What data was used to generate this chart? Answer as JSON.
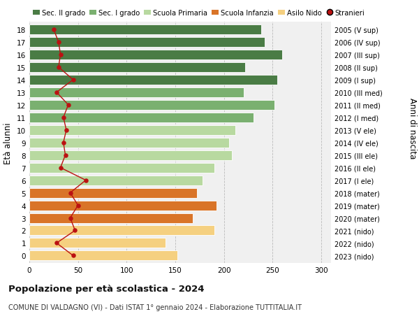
{
  "ages": [
    18,
    17,
    16,
    15,
    14,
    13,
    12,
    11,
    10,
    9,
    8,
    7,
    6,
    5,
    4,
    3,
    2,
    1,
    0
  ],
  "right_labels": [
    "2005 (V sup)",
    "2006 (IV sup)",
    "2007 (III sup)",
    "2008 (II sup)",
    "2009 (I sup)",
    "2010 (III med)",
    "2011 (II med)",
    "2012 (I med)",
    "2013 (V ele)",
    "2014 (IV ele)",
    "2015 (III ele)",
    "2016 (II ele)",
    "2017 (I ele)",
    "2018 (mater)",
    "2019 (mater)",
    "2020 (mater)",
    "2021 (nido)",
    "2022 (nido)",
    "2023 (nido)"
  ],
  "bar_values": [
    238,
    242,
    260,
    222,
    255,
    220,
    252,
    230,
    212,
    205,
    208,
    190,
    178,
    172,
    192,
    168,
    190,
    140,
    152
  ],
  "stranieri_values": [
    25,
    30,
    32,
    30,
    45,
    28,
    40,
    35,
    38,
    35,
    37,
    32,
    58,
    42,
    50,
    42,
    47,
    28,
    45
  ],
  "bar_colors": [
    "#4a7c45",
    "#4a7c45",
    "#4a7c45",
    "#4a7c45",
    "#4a7c45",
    "#7ab070",
    "#7ab070",
    "#7ab070",
    "#b8d9a0",
    "#b8d9a0",
    "#b8d9a0",
    "#b8d9a0",
    "#b8d9a0",
    "#d97428",
    "#d97428",
    "#d97428",
    "#f5d080",
    "#f5d080",
    "#f5d080"
  ],
  "legend_labels": [
    "Sec. II grado",
    "Sec. I grado",
    "Scuola Primaria",
    "Scuola Infanzia",
    "Asilo Nido",
    "Stranieri"
  ],
  "legend_colors": [
    "#4a7c45",
    "#7ab070",
    "#b8d9a0",
    "#d97428",
    "#f5d080",
    "#cc2222"
  ],
  "title_bold": "Popolazione per età scolastica - 2024",
  "subtitle": "COMUNE DI VALDAGNO (VI) - Dati ISTAT 1° gennaio 2024 - Elaborazione TUTTITALIA.IT",
  "ylabel_left": "Età alunni",
  "ylabel_right": "Anni di nascita",
  "xlim": [
    0,
    310
  ],
  "xticks": [
    0,
    50,
    100,
    150,
    200,
    250,
    300
  ],
  "bg_color": "#ffffff",
  "plot_bg_color": "#f0f0f0",
  "stranieri_line_color": "#bb1111",
  "stranieri_dot_color": "#bb1111",
  "bar_height": 0.78,
  "figwidth": 6.0,
  "figheight": 4.6,
  "dpi": 100
}
